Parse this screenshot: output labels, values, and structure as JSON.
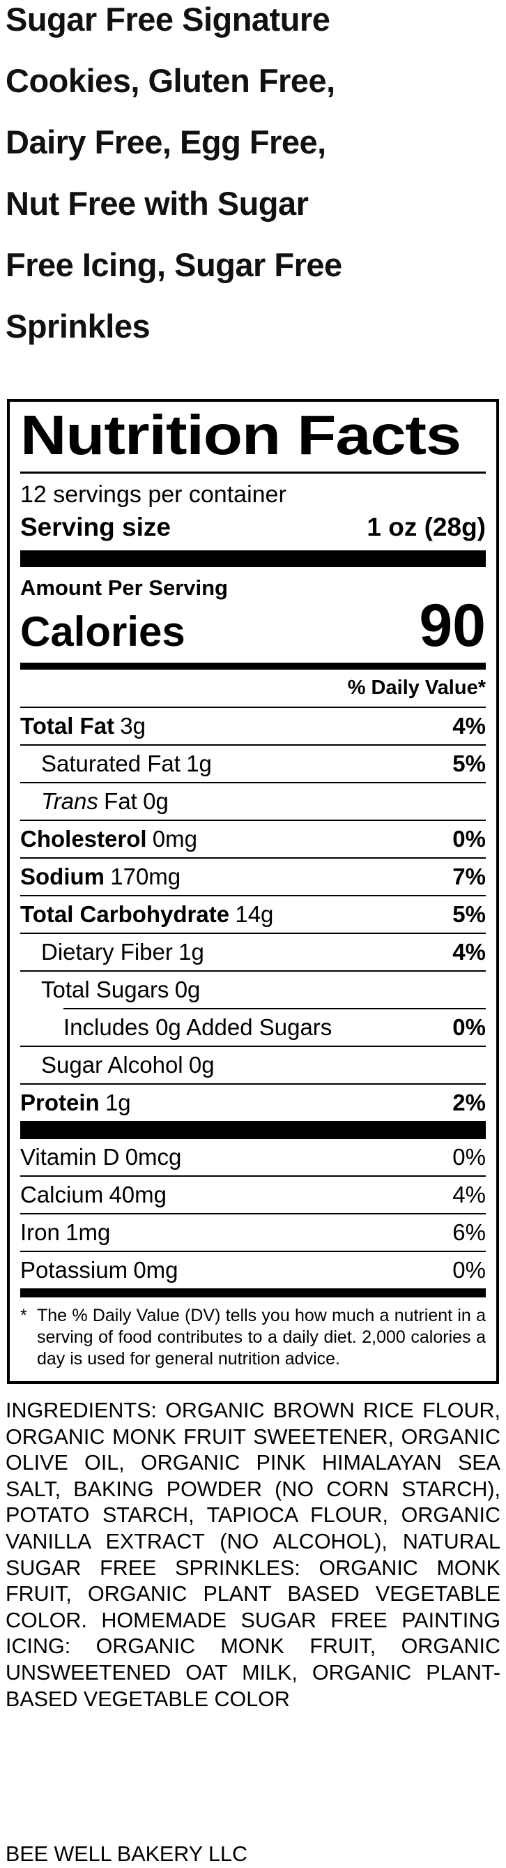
{
  "colors": {
    "background": "#ffffff",
    "text": "#000000"
  },
  "product_title": "Sugar Free Signature Cookies, Gluten Free, Dairy Free, Egg Free, Nut Free with Sugar Free Icing, Sugar Free Sprinkles",
  "nutrition_facts": {
    "title": "Nutrition Facts",
    "servings_per_container": "12 servings per container",
    "serving_size_label": "Serving size",
    "serving_size_value": "1 oz (28g)",
    "amount_per_serving": "Amount Per Serving",
    "calories_label": "Calories",
    "calories_value": "90",
    "daily_value_header": "% Daily Value*",
    "rows": [
      {
        "name": "Total Fat",
        "amount": "3g",
        "dv": "4%"
      },
      {
        "name": "Saturated Fat",
        "amount": "1g",
        "dv": "5%"
      },
      {
        "name_italic": "Trans",
        "name": "Fat",
        "amount": "0g",
        "dv": ""
      },
      {
        "name": "Cholesterol",
        "amount": "0mg",
        "dv": "0%"
      },
      {
        "name": "Sodium",
        "amount": "170mg",
        "dv": "7%"
      },
      {
        "name": "Total Carbohydrate",
        "amount": "14g",
        "dv": "5%"
      },
      {
        "name": "Dietary Fiber",
        "amount": "1g",
        "dv": "4%"
      },
      {
        "name": "Total Sugars",
        "amount": "0g",
        "dv": ""
      },
      {
        "name": "Includes 0g Added Sugars",
        "amount": "",
        "dv": "0%"
      },
      {
        "name": "Sugar Alcohol",
        "amount": "0g",
        "dv": ""
      },
      {
        "name": "Protein",
        "amount": "1g",
        "dv": "2%"
      }
    ],
    "micronutrients": [
      {
        "name": "Vitamin D",
        "amount": "0mcg",
        "dv": "0%"
      },
      {
        "name": "Calcium",
        "amount": "40mg",
        "dv": "4%"
      },
      {
        "name": "Iron",
        "amount": "1mg",
        "dv": "6%"
      },
      {
        "name": "Potassium",
        "amount": "0mg",
        "dv": "0%"
      }
    ],
    "footnote_marker": "*",
    "footnote": "The % Daily Value (DV) tells you how much a nutrient in a serving of food contributes to a daily diet. 2,000 calories a day is used for general nutrition advice."
  },
  "ingredients": "INGREDIENTS: ORGANIC BROWN RICE FLOUR, ORGANIC MONK FRUIT SWEETENER, ORGANIC OLIVE OIL, ORGANIC PINK HIMALAYAN SEA SALT, BAKING POWDER (NO CORN STARCH), POTATO STARCH, TAPIOCA FLOUR, ORGANIC VANILLA EXTRACT (NO ALCOHOL), NATURAL SUGAR FREE SPRINKLES: ORGANIC MONK FRUIT, ORGANIC PLANT BASED VEGETABLE COLOR. HOMEMADE SUGAR FREE PAINTING ICING: ORGANIC MONK FRUIT, ORGANIC UNSWEETENED OAT MILK, ORGANIC PLANT-BASED VEGETABLE COLOR",
  "footer_brand": "BEE WELL BAKERY LLC"
}
